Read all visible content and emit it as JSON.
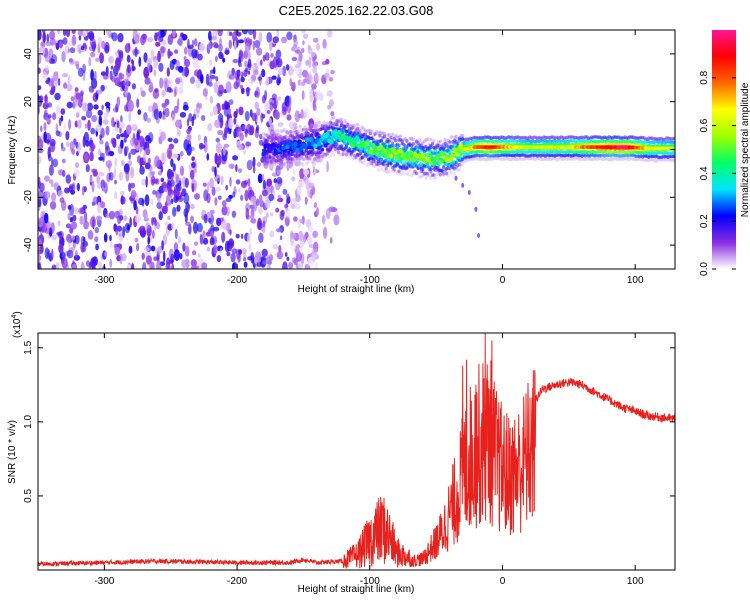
{
  "figure": {
    "title": "C2E5.2025.162.22.03.G08"
  },
  "chart_data": [
    {
      "type": "heatmap",
      "xlabel": "Height of straight line (km)",
      "ylabel": "Frequency (Hz)",
      "xlim": [
        -350,
        130
      ],
      "ylim": [
        -50,
        50
      ],
      "xticks": [
        -300,
        -200,
        -100,
        0,
        100
      ],
      "yticks": [
        -40,
        -20,
        0,
        20,
        40
      ],
      "xtick_labels": [
        "-300",
        "-200",
        "-100",
        "0",
        "100"
      ],
      "ytick_labels": [
        "-40",
        "-20",
        "0",
        "20",
        "40"
      ],
      "colorbar": {
        "label": "Normalized spectral amplitude",
        "range": [
          0,
          1
        ],
        "ticks": [
          0.0,
          0.2,
          0.4,
          0.6,
          0.8
        ],
        "tick_labels": [
          "0.0",
          "0.2",
          "0.4",
          "0.6",
          "0.8"
        ],
        "colors": [
          "#ffffff",
          "#8a2be2",
          "#0000ff",
          "#00e5ff",
          "#00ff66",
          "#a0ff00",
          "#ffff00",
          "#ff6600",
          "#ff0000",
          "#ff1493"
        ]
      },
      "noise_region": {
        "x_range": [
          -350,
          -140
        ],
        "y_range": [
          -50,
          50
        ],
        "amplitude": 0.15
      },
      "ridge": [
        {
          "x": -180,
          "y": 0,
          "amp": 0.15
        },
        {
          "x": -160,
          "y": 1,
          "amp": 0.2
        },
        {
          "x": -140,
          "y": 3,
          "amp": 0.25
        },
        {
          "x": -125,
          "y": 6,
          "amp": 0.35
        },
        {
          "x": -110,
          "y": 3,
          "amp": 0.4
        },
        {
          "x": -95,
          "y": 0,
          "amp": 0.45
        },
        {
          "x": -80,
          "y": -2,
          "amp": 0.5
        },
        {
          "x": -65,
          "y": -3,
          "amp": 0.5
        },
        {
          "x": -50,
          "y": -4,
          "amp": 0.45
        },
        {
          "x": -40,
          "y": -3,
          "amp": 0.5
        },
        {
          "x": -30,
          "y": 0,
          "amp": 0.55
        },
        {
          "x": -20,
          "y": 1,
          "amp": 0.7
        },
        {
          "x": -10,
          "y": 1,
          "amp": 0.85
        },
        {
          "x": 0,
          "y": 1,
          "amp": 0.7
        },
        {
          "x": 20,
          "y": 1,
          "amp": 0.55
        },
        {
          "x": 50,
          "y": 1,
          "amp": 0.6
        },
        {
          "x": 80,
          "y": 1,
          "amp": 0.9
        },
        {
          "x": 95,
          "y": 1,
          "amp": 0.9
        },
        {
          "x": 110,
          "y": 0.5,
          "amp": 0.6
        },
        {
          "x": 130,
          "y": 0.5,
          "amp": 0.55
        }
      ]
    },
    {
      "type": "line",
      "xlabel": "Height of straight line (km)",
      "ylabel": "SNR (10 * v/v)",
      "y_multiplier_label": "(x10",
      "y_multiplier_exponent": "4",
      "xlim": [
        -350,
        130
      ],
      "ylim": [
        0,
        1.6
      ],
      "xticks": [
        -300,
        -200,
        -100,
        0,
        100
      ],
      "yticks": [
        0.5,
        1.0,
        1.5
      ],
      "xtick_labels": [
        "-300",
        "-200",
        "-100",
        "0",
        "100"
      ],
      "ytick_labels": [
        "0.5",
        "1.0",
        "1.5"
      ],
      "series": [
        {
          "color": "#e8211d",
          "x": [
            -350,
            -300,
            -260,
            -200,
            -160,
            -150,
            -140,
            -120,
            -110,
            -100,
            -95,
            -90,
            -85,
            -80,
            -70,
            -60,
            -50,
            -45,
            -40,
            -35,
            -30,
            -25,
            -20,
            -15,
            -10,
            -5,
            0,
            5,
            10,
            15,
            20,
            25,
            30,
            40,
            50,
            60,
            70,
            80,
            90,
            100,
            110,
            120,
            130
          ],
          "y": [
            0.04,
            0.05,
            0.06,
            0.05,
            0.05,
            0.07,
            0.05,
            0.06,
            0.1,
            0.2,
            0.25,
            0.28,
            0.22,
            0.12,
            0.08,
            0.1,
            0.25,
            0.35,
            0.5,
            0.65,
            0.85,
            1.0,
            1.1,
            1.15,
            1.2,
            1.0,
            0.9,
            0.85,
            0.88,
            0.95,
            1.05,
            1.15,
            1.22,
            1.25,
            1.27,
            1.25,
            1.2,
            1.15,
            1.1,
            1.07,
            1.04,
            1.03,
            1.02
          ],
          "peaks": [
            {
              "x": -30,
              "y": 1.38
            },
            {
              "x": -27,
              "y": 1.42
            },
            {
              "x": -20,
              "y": 1.25
            },
            {
              "x": -13,
              "y": 1.6
            },
            {
              "x": -8,
              "y": 1.55
            }
          ]
        }
      ]
    }
  ]
}
